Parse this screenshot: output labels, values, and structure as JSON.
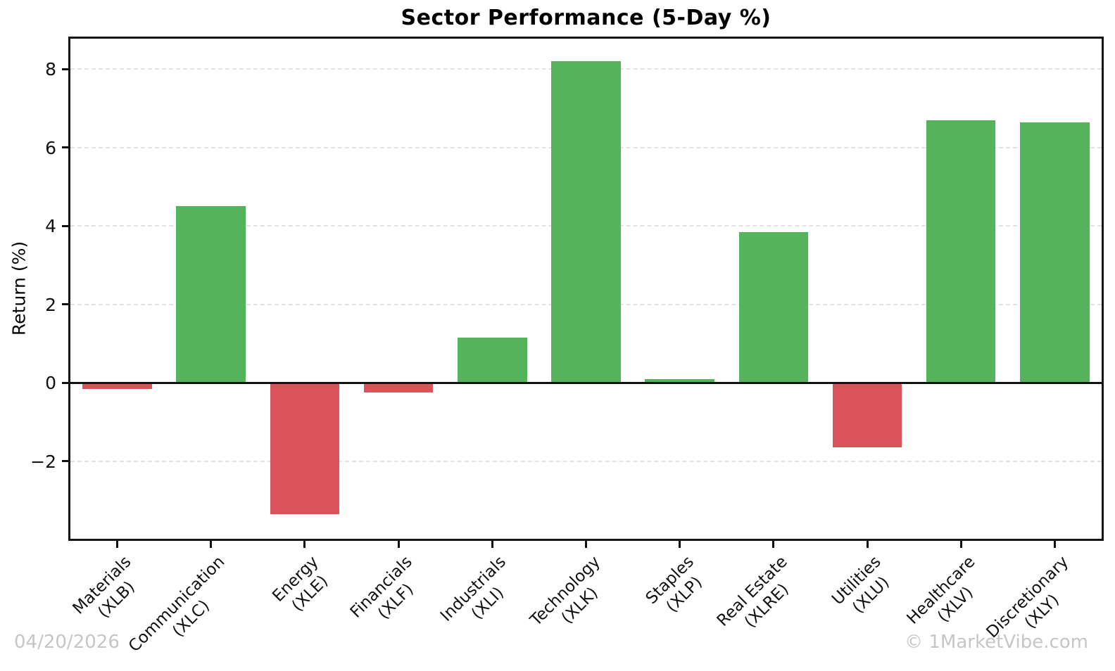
{
  "chart_data": {
    "type": "bar",
    "title": "Sector Performance (5-Day %)",
    "ylabel": "Return (%)",
    "xlabel": "",
    "categories": [
      {
        "name": "Materials",
        "ticker": "(XLB)"
      },
      {
        "name": "Communication",
        "ticker": "(XLC)"
      },
      {
        "name": "Energy",
        "ticker": "(XLE)"
      },
      {
        "name": "Financials",
        "ticker": "(XLF)"
      },
      {
        "name": "Industrials",
        "ticker": "(XLI)"
      },
      {
        "name": "Technology",
        "ticker": "(XLK)"
      },
      {
        "name": "Staples",
        "ticker": "(XLP)"
      },
      {
        "name": "Real Estate",
        "ticker": "(XLRE)"
      },
      {
        "name": "Utilities",
        "ticker": "(XLU)"
      },
      {
        "name": "Healthcare",
        "ticker": "(XLV)"
      },
      {
        "name": "Discretionary",
        "ticker": "(XLY)"
      }
    ],
    "values": [
      -0.15,
      4.5,
      -3.35,
      -0.25,
      1.15,
      8.2,
      0.1,
      3.85,
      -1.65,
      6.7,
      6.65
    ],
    "ylim": [
      -3.98,
      8.78
    ],
    "yticks": [
      {
        "value": -2,
        "label": "−2"
      },
      {
        "value": 0,
        "label": "0"
      },
      {
        "value": 2,
        "label": "2"
      },
      {
        "value": 4,
        "label": "4"
      },
      {
        "value": 6,
        "label": "6"
      },
      {
        "value": 8,
        "label": "8"
      }
    ],
    "grid": "horizontal-dashed",
    "legend": "none",
    "bar_width_frac": 0.74,
    "colors": {
      "positive": "#55b45b",
      "negative": "#d95459",
      "axis": "#111111",
      "gridline": "#e2e2e2"
    }
  },
  "footer": {
    "date": "04/20/2026",
    "copyright": "© 1MarketVibe.com",
    "text_color": "#c6c6c6"
  }
}
